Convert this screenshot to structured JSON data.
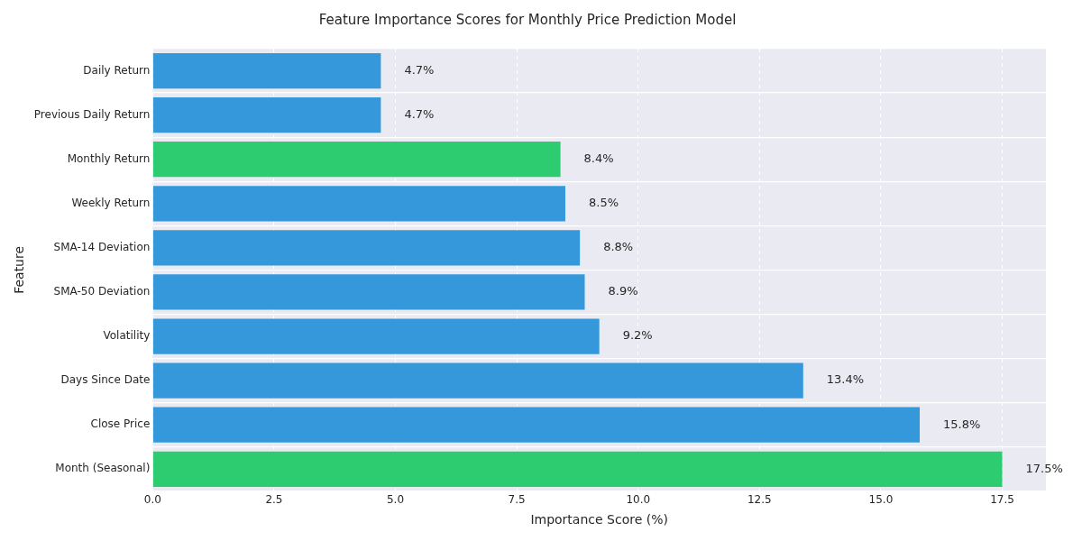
{
  "chart_data": {
    "type": "bar",
    "orientation": "horizontal",
    "title": "Feature Importance Scores for Monthly Price Prediction Model",
    "x_label": "Importance Score (%)",
    "y_label": "Feature",
    "categories": [
      "Daily Return",
      "Previous Daily Return",
      "Monthly Return",
      "Weekly Return",
      "SMA-14 Deviation",
      "SMA-50 Deviation",
      "Volatility",
      "Days Since Date",
      "Close Price",
      "Month (Seasonal)"
    ],
    "values": [
      4.7,
      4.7,
      8.4,
      8.5,
      8.8,
      8.9,
      9.2,
      13.4,
      15.8,
      17.5
    ],
    "value_labels": [
      "4.7%",
      "4.7%",
      "8.4%",
      "8.5%",
      "8.8%",
      "8.9%",
      "9.2%",
      "13.4%",
      "15.8%",
      "17.5%"
    ],
    "colors": [
      "#3498db",
      "#3498db",
      "#2ecc71",
      "#3498db",
      "#3498db",
      "#3498db",
      "#3498db",
      "#3498db",
      "#3498db",
      "#2ecc71"
    ],
    "xlim": [
      0,
      18.4
    ],
    "xticks": [
      {
        "value": 0,
        "label": "0.0"
      },
      2.5,
      {
        "value": 5,
        "label": "5.0"
      },
      7.5,
      {
        "value": 10,
        "label": "10.0"
      },
      12.5,
      {
        "value": 15,
        "label": "15.0"
      },
      17.5
    ],
    "grid": true,
    "data_labels": true
  }
}
